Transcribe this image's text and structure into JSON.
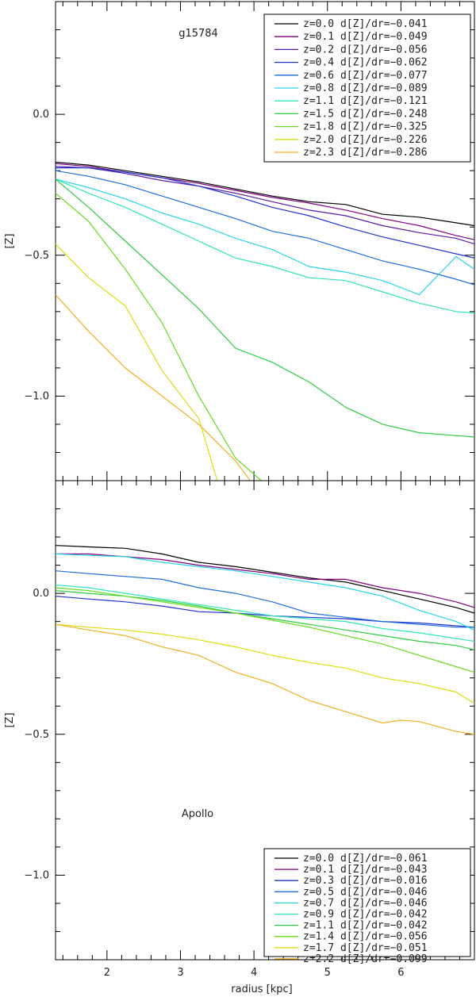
{
  "figure": {
    "xlabel": "radius [kpc]",
    "x_tick_labels": [
      "2",
      "3",
      "4",
      "5",
      "6"
    ]
  },
  "chart_data": [
    {
      "type": "line",
      "title": "g15784",
      "xlabel": "radius [kpc]",
      "ylabel": "[Z]",
      "xlim": [
        1.3,
        7.0
      ],
      "ylim": [
        -1.3,
        0.4
      ],
      "x_ticks": [
        2,
        3,
        4,
        5,
        6
      ],
      "y_ticks": [
        0.0,
        -0.5,
        -1.0
      ],
      "y_tick_labels": [
        "0.0",
        "−0.5",
        "−1.0"
      ],
      "grid": false,
      "legend_position": "top-right",
      "series": [
        {
          "name": "z=0.0  d[Z]/dr=−0.041",
          "color": "#000000",
          "x": [
            1.3,
            1.75,
            2.25,
            2.75,
            3.25,
            3.75,
            4.25,
            4.75,
            5.25,
            5.75,
            6.25,
            6.75,
            7.0
          ],
          "y": [
            -0.17,
            -0.18,
            -0.2,
            -0.22,
            -0.24,
            -0.265,
            -0.29,
            -0.31,
            -0.32,
            -0.355,
            -0.365,
            -0.385,
            -0.395
          ]
        },
        {
          "name": "z=0.1  d[Z]/dr=−0.049",
          "color": "#800080",
          "x": [
            1.3,
            1.75,
            2.25,
            2.75,
            3.25,
            3.75,
            4.25,
            4.75,
            5.25,
            5.75,
            6.25,
            6.75,
            7.0
          ],
          "y": [
            -0.175,
            -0.185,
            -0.205,
            -0.225,
            -0.245,
            -0.27,
            -0.295,
            -0.315,
            -0.34,
            -0.37,
            -0.395,
            -0.43,
            -0.445
          ]
        },
        {
          "name": "z=0.2  d[Z]/dr=−0.056",
          "color": "#5a1aa8",
          "x": [
            1.3,
            1.75,
            2.25,
            2.75,
            3.25,
            3.75,
            4.25,
            4.75,
            5.25,
            5.75,
            6.25,
            6.75,
            7.0
          ],
          "y": [
            -0.185,
            -0.19,
            -0.21,
            -0.235,
            -0.255,
            -0.28,
            -0.31,
            -0.34,
            -0.36,
            -0.395,
            -0.42,
            -0.44,
            -0.46
          ]
        },
        {
          "name": "z=0.4  d[Z]/dr=−0.062",
          "color": "#2233cc",
          "x": [
            1.3,
            1.75,
            2.25,
            2.75,
            3.25,
            3.75,
            4.25,
            4.75,
            5.25,
            5.75,
            6.25,
            6.75,
            7.0
          ],
          "y": [
            -0.19,
            -0.19,
            -0.205,
            -0.225,
            -0.255,
            -0.29,
            -0.33,
            -0.36,
            -0.4,
            -0.435,
            -0.465,
            -0.495,
            -0.51
          ]
        },
        {
          "name": "z=0.6  d[Z]/dr=−0.077",
          "color": "#1e6fdc",
          "x": [
            1.3,
            1.75,
            2.25,
            2.75,
            3.25,
            3.75,
            4.25,
            4.75,
            5.25,
            5.75,
            6.25,
            6.75,
            7.0
          ],
          "y": [
            -0.2,
            -0.22,
            -0.25,
            -0.29,
            -0.33,
            -0.37,
            -0.415,
            -0.44,
            -0.48,
            -0.52,
            -0.55,
            -0.585,
            -0.605
          ]
        },
        {
          "name": "z=0.8  d[Z]/dr=−0.089",
          "color": "#2ad4e6",
          "x": [
            1.3,
            1.75,
            2.25,
            2.75,
            3.25,
            3.75,
            4.25,
            4.75,
            5.25,
            5.75,
            6.25,
            6.75,
            7.0
          ],
          "y": [
            -0.23,
            -0.26,
            -0.3,
            -0.35,
            -0.39,
            -0.44,
            -0.48,
            -0.54,
            -0.56,
            -0.59,
            -0.64,
            -0.505,
            -0.55
          ]
        },
        {
          "name": "z=1.1  d[Z]/dr=−0.121",
          "color": "#30e6b8",
          "x": [
            1.3,
            1.75,
            2.25,
            2.75,
            3.25,
            3.75,
            4.25,
            4.75,
            5.25,
            5.75,
            6.25,
            6.75,
            7.0
          ],
          "y": [
            -0.23,
            -0.28,
            -0.33,
            -0.39,
            -0.45,
            -0.51,
            -0.54,
            -0.58,
            -0.59,
            -0.63,
            -0.67,
            -0.7,
            -0.705
          ]
        },
        {
          "name": "z=1.5  d[Z]/dr=−0.248",
          "color": "#2ecc40",
          "x": [
            1.3,
            1.75,
            2.25,
            2.75,
            3.25,
            3.75,
            4.25,
            4.75,
            5.25,
            5.75,
            6.25,
            6.75,
            7.0
          ],
          "y": [
            -0.23,
            -0.33,
            -0.45,
            -0.57,
            -0.69,
            -0.83,
            -0.88,
            -0.95,
            -1.04,
            -1.1,
            -1.13,
            -1.14,
            -1.145
          ]
        },
        {
          "name": "z=1.8  d[Z]/dr=−0.325",
          "color": "#66dd22",
          "x": [
            1.3,
            1.75,
            2.25,
            2.75,
            3.25,
            3.75,
            4.1
          ],
          "y": [
            -0.28,
            -0.38,
            -0.55,
            -0.74,
            -1.0,
            -1.22,
            -1.3
          ]
        },
        {
          "name": "z=2.0  d[Z]/dr=−0.226",
          "color": "#dddd11",
          "x": [
            1.3,
            1.75,
            2.25,
            2.75,
            3.25,
            3.5
          ],
          "y": [
            -0.46,
            -0.58,
            -0.68,
            -0.91,
            -1.08,
            -1.3
          ]
        },
        {
          "name": "z=2.3  d[Z]/dr=−0.286",
          "color": "#f0b020",
          "x": [
            1.3,
            1.75,
            2.25,
            2.75,
            3.25,
            3.75,
            3.95
          ],
          "y": [
            -0.64,
            -0.77,
            -0.9,
            -1.0,
            -1.1,
            -1.23,
            -1.3
          ]
        }
      ]
    },
    {
      "type": "line",
      "title": "Apollo",
      "xlabel": "radius [kpc]",
      "ylabel": "[Z]",
      "xlim": [
        1.3,
        7.0
      ],
      "ylim": [
        -1.3,
        0.4
      ],
      "x_ticks": [
        2,
        3,
        4,
        5,
        6
      ],
      "y_ticks": [
        0.0,
        -0.5,
        -1.0
      ],
      "y_tick_labels": [
        "0.0",
        "−0.5",
        "−1.0"
      ],
      "grid": false,
      "legend_position": "bottom-right",
      "series": [
        {
          "name": "z=0.0  d[Z]/dr=−0.061",
          "color": "#000000",
          "x": [
            1.3,
            1.75,
            2.25,
            2.75,
            3.25,
            3.75,
            4.25,
            4.75,
            5.25,
            5.75,
            6.25,
            6.75,
            7.0
          ],
          "y": [
            0.17,
            0.165,
            0.16,
            0.14,
            0.11,
            0.095,
            0.075,
            0.055,
            0.04,
            0.01,
            -0.02,
            -0.05,
            -0.07
          ]
        },
        {
          "name": "z=0.1  d[Z]/dr=−0.043",
          "color": "#800080",
          "x": [
            1.3,
            1.75,
            2.25,
            2.75,
            3.25,
            3.75,
            4.25,
            4.75,
            5.25,
            5.75,
            6.25,
            6.75,
            7.0
          ],
          "y": [
            0.14,
            0.14,
            0.13,
            0.12,
            0.1,
            0.085,
            0.07,
            0.05,
            0.05,
            0.02,
            0.0,
            -0.03,
            -0.05
          ]
        },
        {
          "name": "z=0.3  d[Z]/dr=−0.016",
          "color": "#2233cc",
          "x": [
            1.3,
            1.75,
            2.25,
            2.75,
            3.25,
            3.75,
            4.25,
            4.75,
            5.25,
            5.75,
            6.25,
            6.75,
            7.0
          ],
          "y": [
            -0.01,
            -0.02,
            -0.03,
            -0.045,
            -0.065,
            -0.07,
            -0.08,
            -0.085,
            -0.09,
            -0.1,
            -0.105,
            -0.115,
            -0.12
          ]
        },
        {
          "name": "z=0.5  d[Z]/dr=−0.046",
          "color": "#1e6fdc",
          "x": [
            1.3,
            1.75,
            2.25,
            2.75,
            3.25,
            3.75,
            4.25,
            4.75,
            5.25,
            5.75,
            6.25,
            6.75,
            7.0
          ],
          "y": [
            0.08,
            0.07,
            0.06,
            0.05,
            0.02,
            0.0,
            -0.03,
            -0.07,
            -0.085,
            -0.1,
            -0.11,
            -0.12,
            -0.12
          ]
        },
        {
          "name": "z=0.7  d[Z]/dr=−0.046",
          "color": "#2ad4e6",
          "x": [
            1.3,
            1.75,
            2.25,
            2.75,
            3.25,
            3.75,
            4.25,
            4.75,
            5.25,
            5.75,
            6.25,
            6.75,
            7.0
          ],
          "y": [
            0.14,
            0.135,
            0.13,
            0.11,
            0.095,
            0.08,
            0.06,
            0.04,
            0.02,
            -0.01,
            -0.06,
            -0.1,
            -0.13
          ]
        },
        {
          "name": "z=0.9  d[Z]/dr=−0.042",
          "color": "#30e6b8",
          "x": [
            1.3,
            1.75,
            2.25,
            2.75,
            3.25,
            3.75,
            4.25,
            4.75,
            5.25,
            5.75,
            6.25,
            6.75,
            7.0
          ],
          "y": [
            0.03,
            0.02,
            0.0,
            -0.02,
            -0.04,
            -0.06,
            -0.08,
            -0.09,
            -0.1,
            -0.125,
            -0.14,
            -0.16,
            -0.17
          ]
        },
        {
          "name": "z=1.1  d[Z]/dr=−0.042",
          "color": "#2ecc40",
          "x": [
            1.3,
            1.75,
            2.25,
            2.75,
            3.25,
            3.75,
            4.25,
            4.75,
            5.25,
            5.75,
            6.25,
            6.75,
            7.0
          ],
          "y": [
            0.01,
            0.0,
            -0.01,
            -0.025,
            -0.045,
            -0.07,
            -0.09,
            -0.11,
            -0.13,
            -0.15,
            -0.17,
            -0.185,
            -0.2
          ]
        },
        {
          "name": "z=1.4  d[Z]/dr=−0.056",
          "color": "#66dd22",
          "x": [
            1.3,
            1.75,
            2.25,
            2.75,
            3.25,
            3.75,
            4.25,
            4.75,
            5.25,
            5.75,
            6.25,
            6.75,
            7.0
          ],
          "y": [
            0.02,
            0.01,
            -0.01,
            -0.03,
            -0.05,
            -0.07,
            -0.095,
            -0.12,
            -0.15,
            -0.18,
            -0.22,
            -0.26,
            -0.28
          ]
        },
        {
          "name": "z=1.7  d[Z]/dr=−0.051",
          "color": "#dddd11",
          "x": [
            1.3,
            1.75,
            2.25,
            2.75,
            3.25,
            3.75,
            4.25,
            4.75,
            5.25,
            5.75,
            6.25,
            6.75,
            7.0
          ],
          "y": [
            -0.11,
            -0.12,
            -0.13,
            -0.145,
            -0.165,
            -0.19,
            -0.22,
            -0.245,
            -0.265,
            -0.3,
            -0.32,
            -0.35,
            -0.39
          ]
        },
        {
          "name": "z=2.2  d[Z]/dr=−0.099",
          "color": "#f0b020",
          "x": [
            1.3,
            1.75,
            2.25,
            2.75,
            3.25,
            3.75,
            4.25,
            4.75,
            5.25,
            5.75,
            6.0,
            6.25,
            6.75,
            7.0
          ],
          "y": [
            -0.11,
            -0.13,
            -0.15,
            -0.19,
            -0.22,
            -0.28,
            -0.32,
            -0.38,
            -0.42,
            -0.46,
            -0.45,
            -0.455,
            -0.49,
            -0.5
          ]
        }
      ]
    }
  ]
}
